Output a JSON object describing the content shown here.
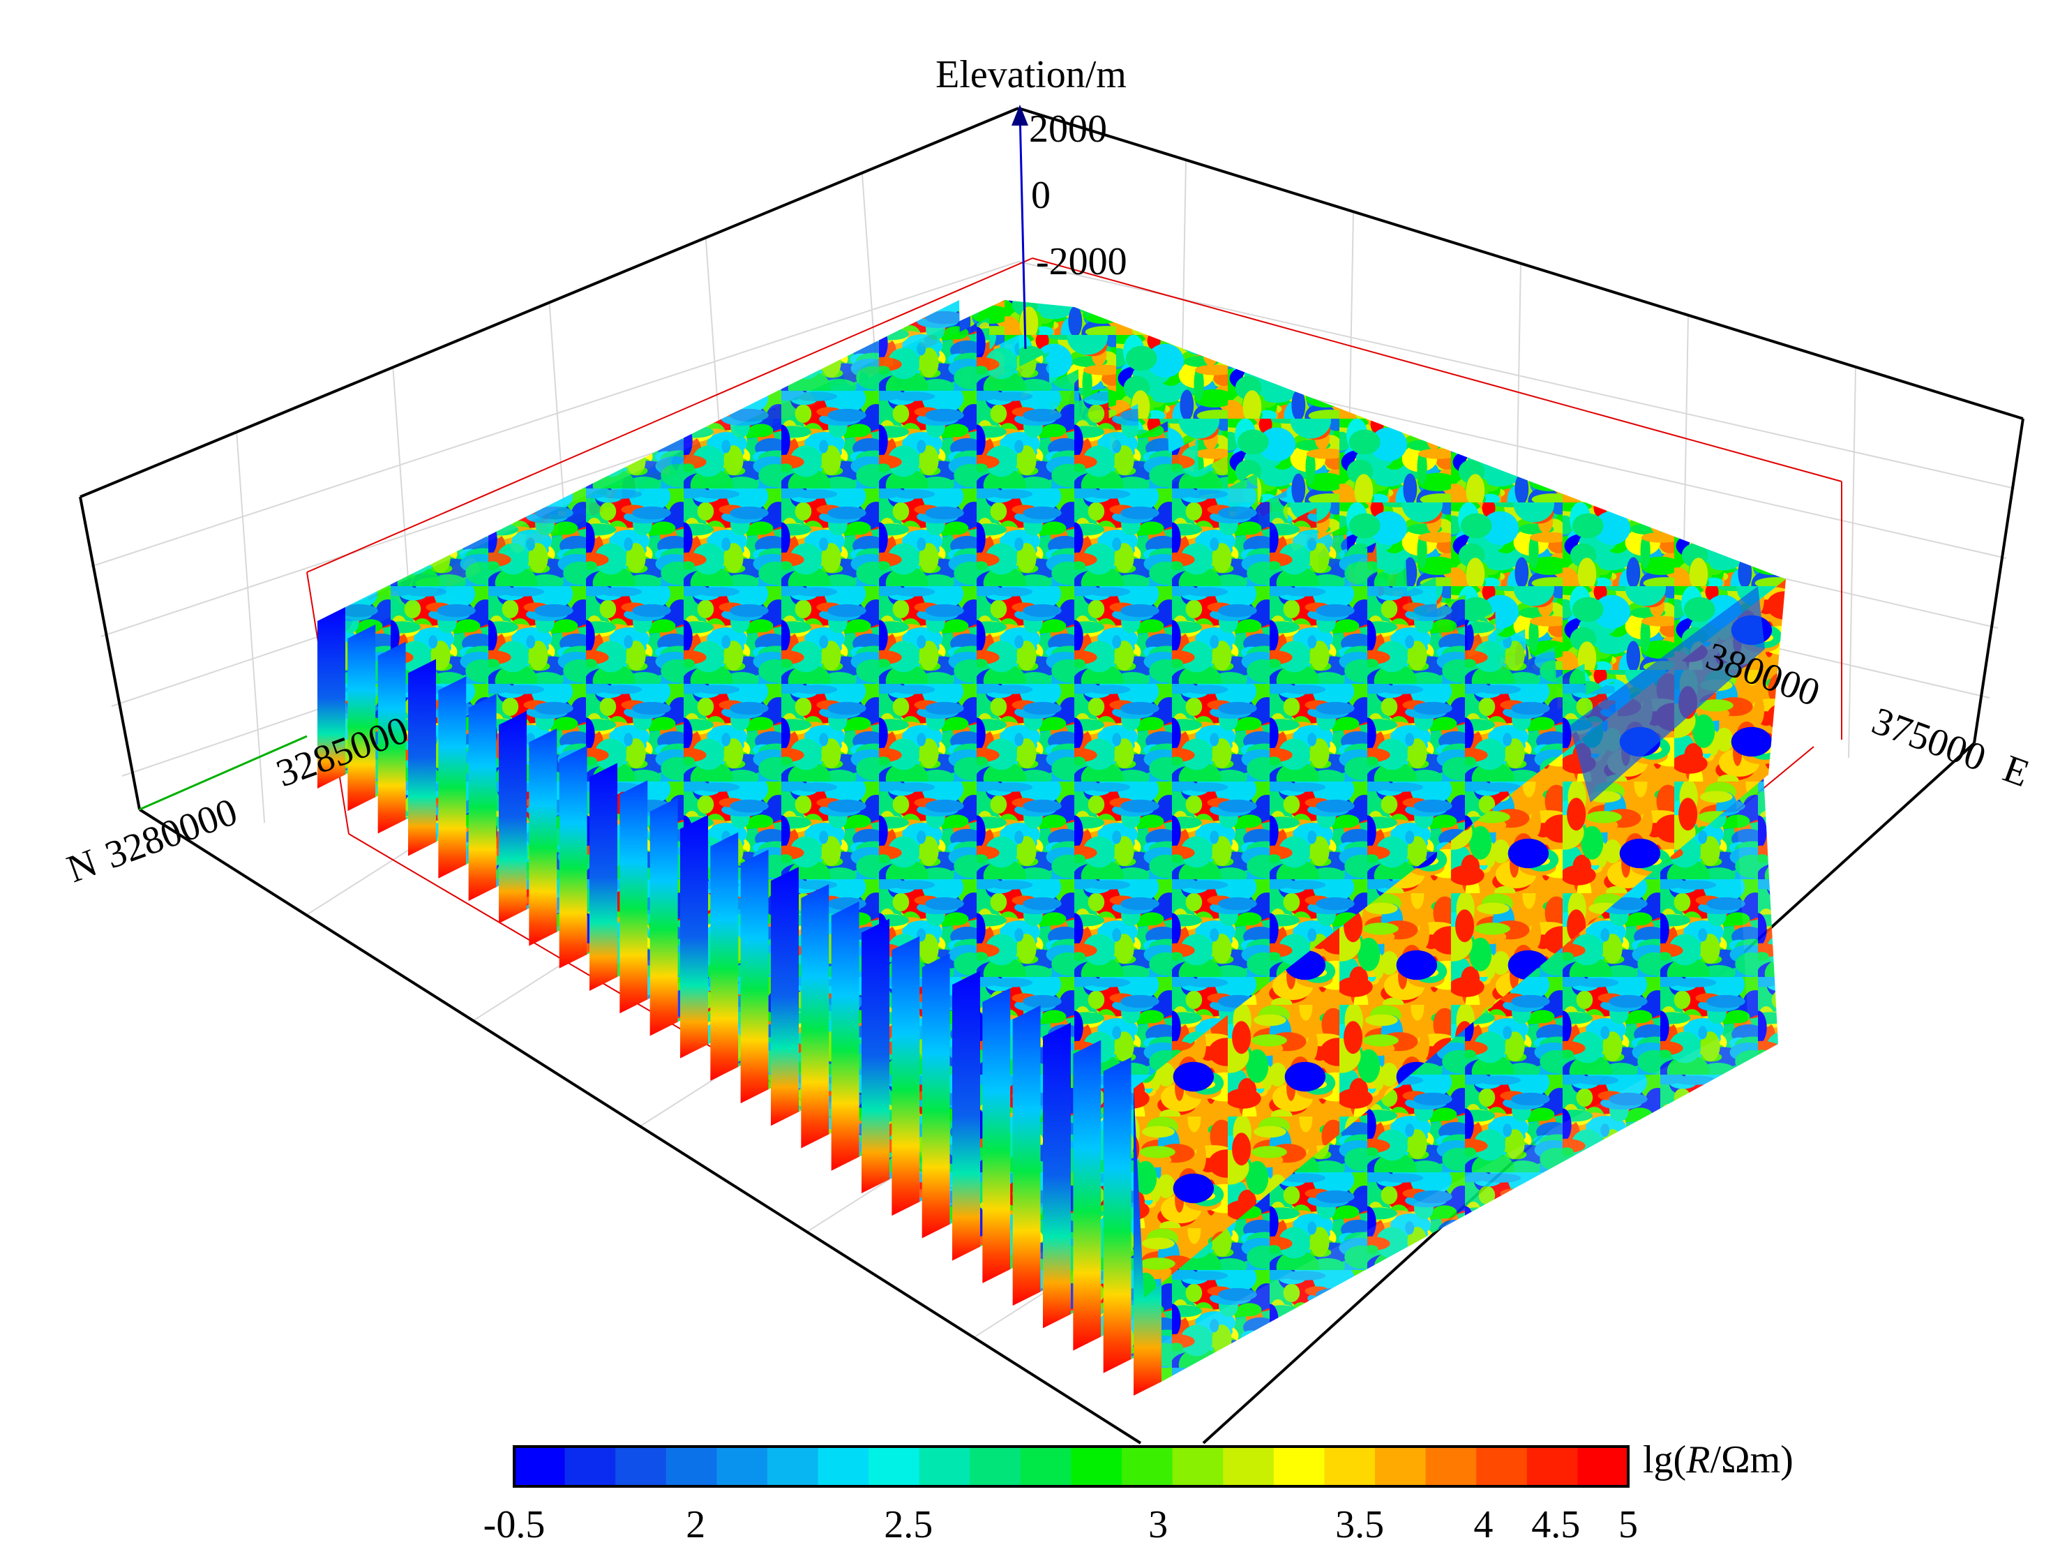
{
  "chart_data": {
    "type": "heatmap",
    "title": "",
    "view": "3D fence diagram of resistivity sections",
    "axes": {
      "z": {
        "label": "Elevation/m",
        "ticks": [
          "2000",
          "0",
          "-2000"
        ]
      },
      "north": {
        "prefix": "N",
        "ticks": [
          "3280000",
          "3285000"
        ]
      },
      "east": {
        "suffix": "E",
        "ticks": [
          "380000",
          "375000"
        ]
      }
    },
    "colorbar": {
      "label_prefix": "lg(",
      "label_var": "R",
      "label_unit": "/Ωm)",
      "ticks": [
        "-0.5",
        "2",
        "2.5",
        "3",
        "3.5",
        "4",
        "4.5",
        "5"
      ],
      "colors": [
        "#0000ff",
        "#0a2cf0",
        "#0f4fea",
        "#0c72ea",
        "#0a93ee",
        "#08b6f2",
        "#00dcf8",
        "#00f2e6",
        "#00e8b0",
        "#00e47a",
        "#00e848",
        "#00f000",
        "#3af000",
        "#88f000",
        "#c8f000",
        "#ffff00",
        "#ffd800",
        "#ffaa00",
        "#ff7a00",
        "#ff4a00",
        "#ff2000",
        "#ff0000"
      ]
    },
    "sections": 28,
    "grid": true
  }
}
